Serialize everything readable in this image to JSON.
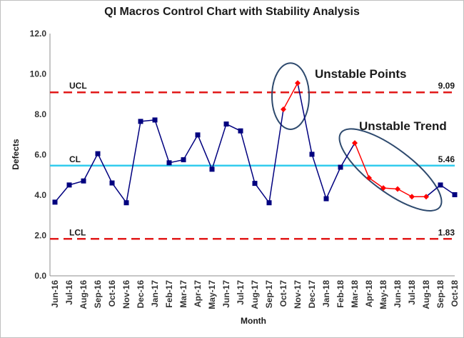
{
  "chart_data": {
    "type": "line",
    "title": "QI Macros Control Chart with Stability Analysis",
    "xlabel": "Month",
    "ylabel": "Defects",
    "ylim": [
      0,
      12
    ],
    "yticks": [
      "0.0",
      "2.0",
      "4.0",
      "6.0",
      "8.0",
      "10.0",
      "12.0"
    ],
    "grid": false,
    "categories": [
      "Jun-16",
      "Jul-16",
      "Aug-16",
      "Sep-16",
      "Oct-16",
      "Nov-16",
      "Dec-16",
      "Jan-17",
      "Feb-17",
      "Mar-17",
      "Apr-17",
      "May-17",
      "Jun-17",
      "Jul-17",
      "Aug-17",
      "Sep-17",
      "Oct-17",
      "Nov-17",
      "Dec-17",
      "Jan-18",
      "Feb-18",
      "Mar-18",
      "Apr-18",
      "May-18",
      "Jun-18",
      "Jul-18",
      "Aug-18",
      "Sep-18",
      "Oct-18"
    ],
    "series": [
      {
        "values": [
          3.65,
          4.5,
          4.7,
          6.05,
          4.6,
          3.62,
          7.65,
          7.72,
          5.6,
          5.75,
          6.98,
          5.28,
          7.52,
          7.18,
          4.58,
          3.62,
          8.25,
          9.55,
          6.02,
          3.82,
          5.38,
          6.58,
          4.85,
          4.35,
          4.3,
          3.92,
          3.92,
          4.5,
          4.02
        ],
        "unstable": [
          false,
          false,
          false,
          false,
          false,
          false,
          false,
          false,
          false,
          false,
          false,
          false,
          false,
          false,
          false,
          false,
          true,
          true,
          false,
          false,
          false,
          true,
          true,
          true,
          true,
          true,
          true,
          false,
          false
        ],
        "color": "#00007f",
        "unstable_color": "#ff0000"
      }
    ],
    "control_lines": [
      {
        "label": "UCL",
        "value": 9.09,
        "value_label": "9.09",
        "color": "#e21a1a",
        "style": "dashed"
      },
      {
        "label": "CL",
        "value": 5.46,
        "value_label": "5.46",
        "color": "#33ccee",
        "style": "solid"
      },
      {
        "label": "LCL",
        "value": 1.83,
        "value_label": "1.83",
        "color": "#e21a1a",
        "style": "dashed"
      }
    ],
    "annotations": [
      {
        "text": "Unstable Points"
      },
      {
        "text": "Unstable Trend"
      }
    ],
    "annotation_color": "#2e4a6e"
  }
}
